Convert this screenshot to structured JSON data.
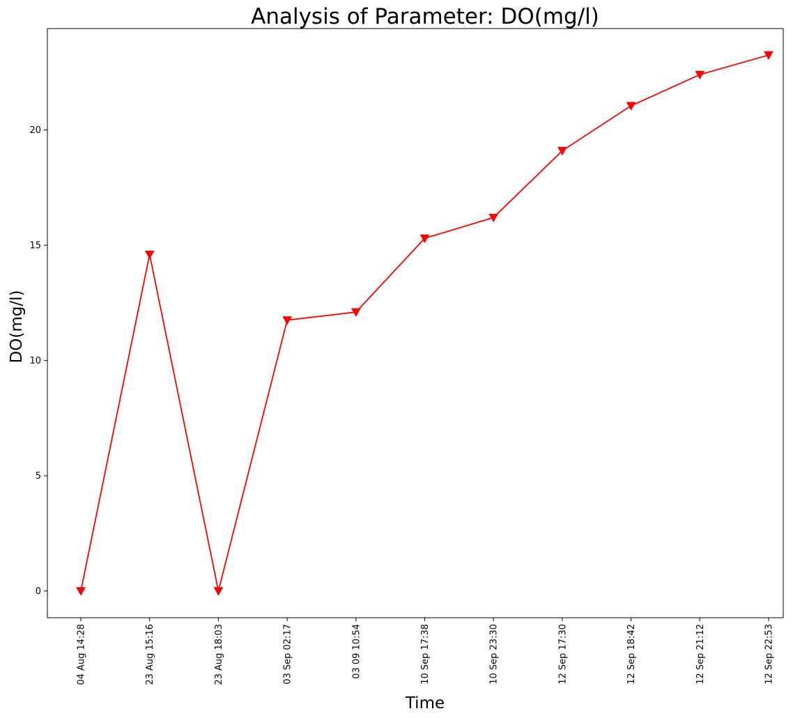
{
  "chart_data": {
    "type": "line",
    "title": "Analysis of Parameter: DO(mg/l)",
    "xlabel": "Time",
    "ylabel": "DO(mg/l)",
    "categories": [
      "04 Aug 14:28",
      "23 Aug 15:16",
      "23 Aug 18:03",
      "03 Sep 02:17",
      "03 09 10:54",
      "10 Sep 17:38",
      "10 Sep 23:30",
      "12 Sep 17:30",
      "12 Sep 18:42",
      "12 Sep 21:12",
      "12 Sep 22:53"
    ],
    "series": [
      {
        "values": [
          0.0,
          14.6,
          0.0,
          11.75,
          12.1,
          15.3,
          16.2,
          19.1,
          21.05,
          22.4,
          23.25
        ],
        "color": "#ff0000",
        "marker": "triangle-down"
      }
    ],
    "ylim": [
      -1.16,
      24.4
    ],
    "yticks": [
      0,
      5,
      10,
      15,
      20
    ],
    "grid": false,
    "legend": "none"
  }
}
